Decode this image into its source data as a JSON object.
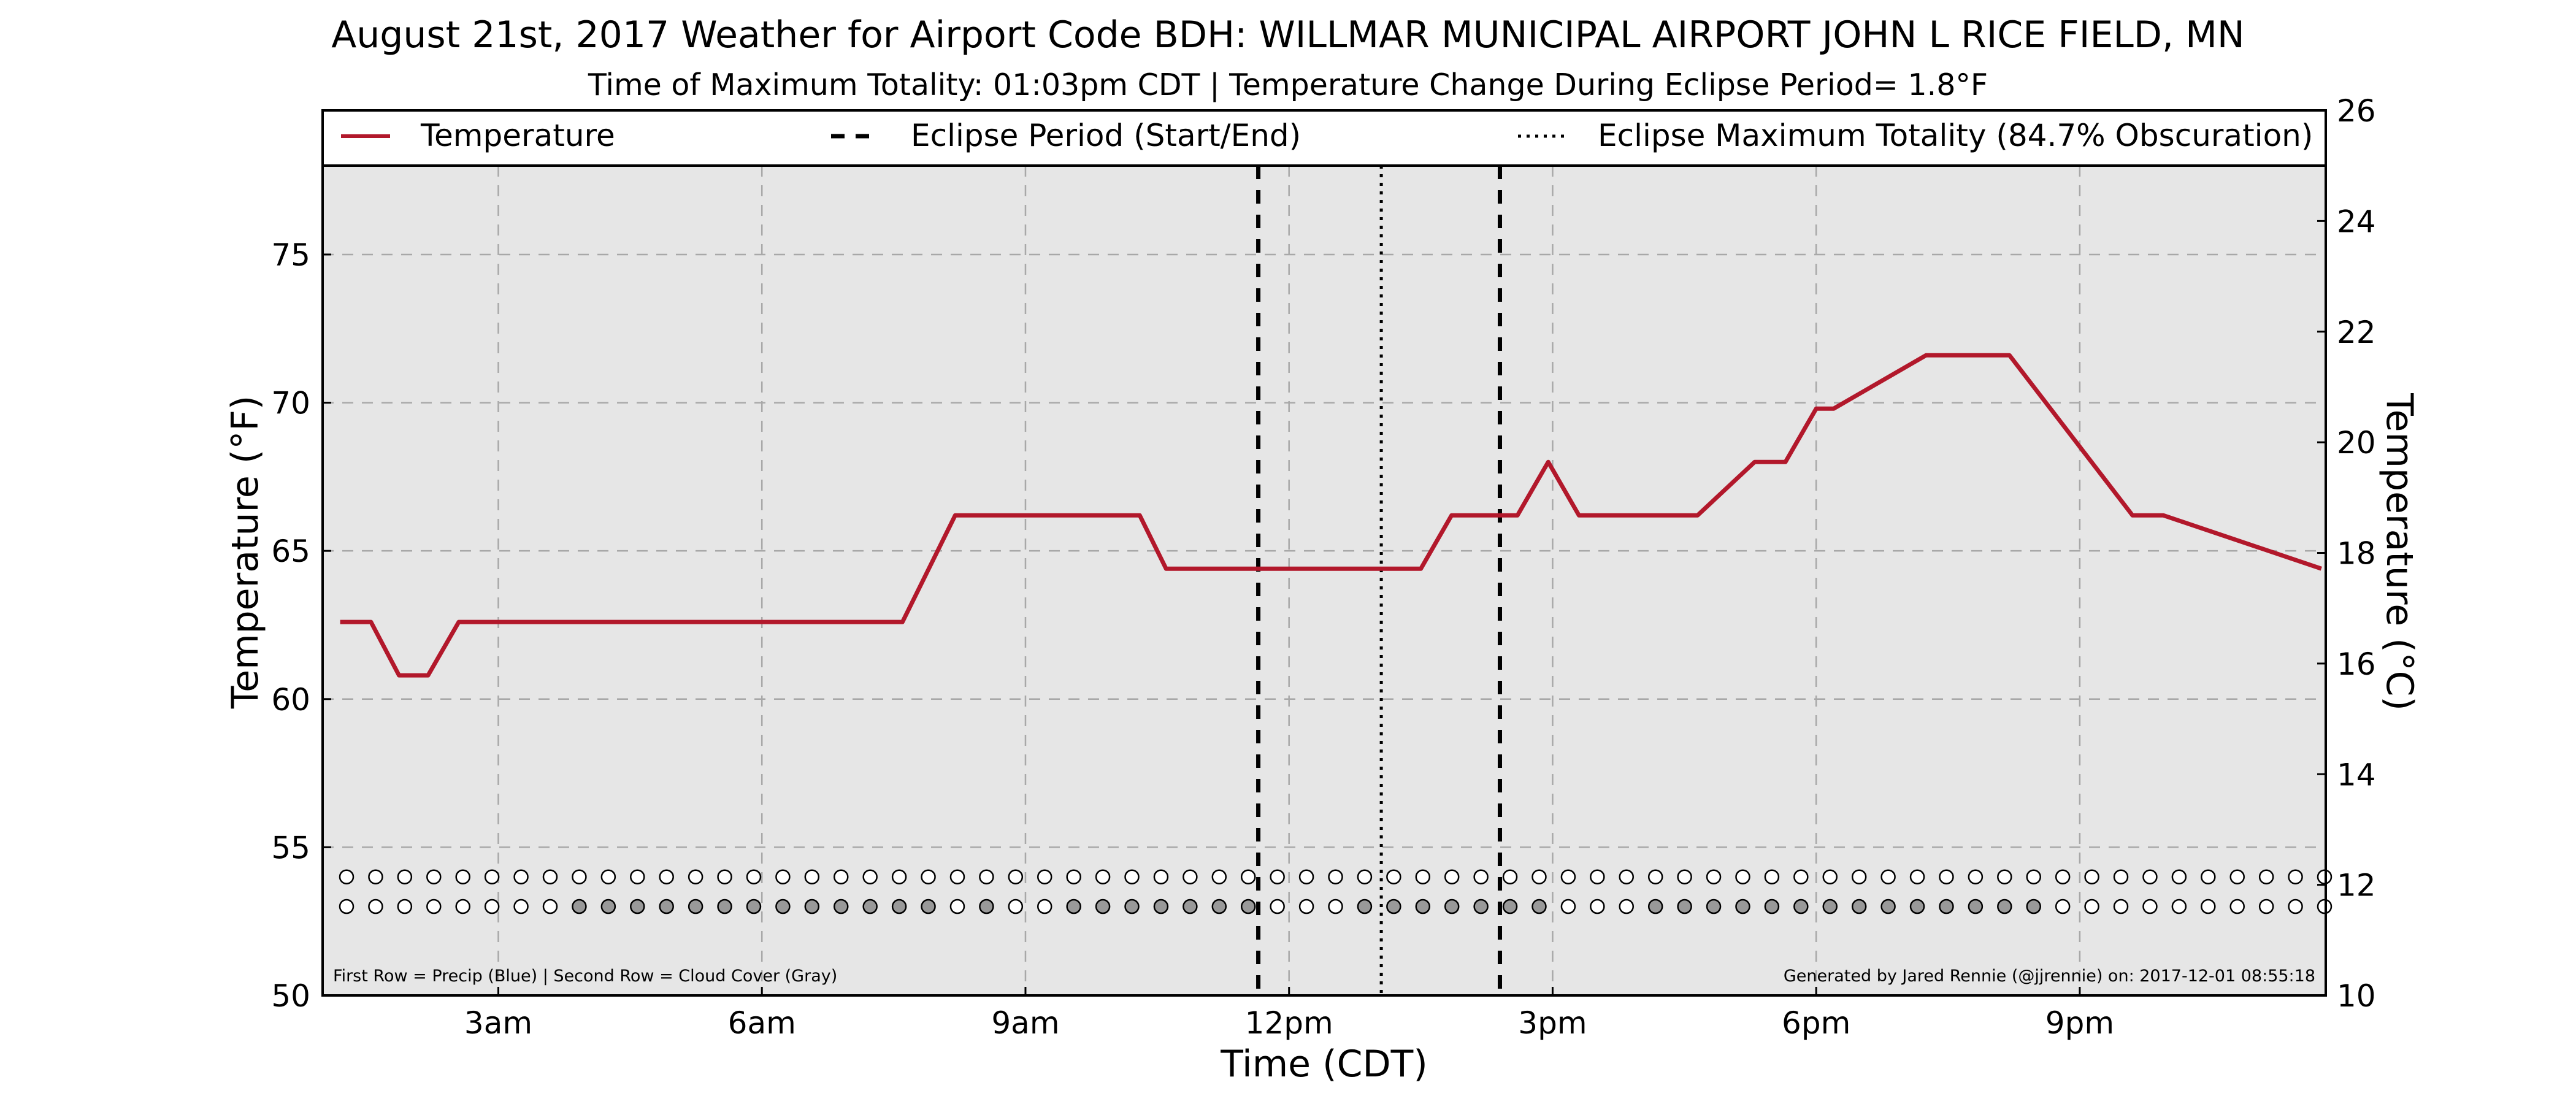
{
  "chart_data": {
    "type": "line",
    "title": "August 21st, 2017 Weather for Airport Code BDH: WILLMAR MUNICIPAL AIRPORT JOHN L RICE FIELD, MN",
    "subtitle": "Time of Maximum Totality: 01:03pm CDT | Temperature Change During Eclipse Period= 1.8$^\\circ$F",
    "subtitle_display": "Time of Maximum Totality: 01:03pm CDT | Temperature Change During Eclipse Period= 1.8°F",
    "xlabel": "Time (CDT)",
    "ylabel": "Temperature ($^\\circ$F)",
    "ylabel_display": "Temperature (°F)",
    "y2label_display": "Temperature (°C)",
    "x_unit": "hours after midnight CDT",
    "xlim": [
      1.0,
      23.8
    ],
    "ylim": [
      50,
      78
    ],
    "y2lim": [
      10,
      26
    ],
    "xticks": [
      {
        "value": 3,
        "label": "3am"
      },
      {
        "value": 6,
        "label": "6am"
      },
      {
        "value": 9,
        "label": "9am"
      },
      {
        "value": 12,
        "label": "12pm"
      },
      {
        "value": 15,
        "label": "3pm"
      },
      {
        "value": 18,
        "label": "6pm"
      },
      {
        "value": 21,
        "label": "9pm"
      }
    ],
    "yticks": [
      50,
      55,
      60,
      65,
      70,
      75
    ],
    "y2ticks": [
      10,
      12,
      14,
      16,
      18,
      20,
      22,
      24,
      26
    ],
    "grid": true,
    "legend": {
      "placement": "top",
      "entries": [
        {
          "label": "Temperature",
          "style": "solid"
        },
        {
          "label": "Eclipse Period (Start/End)",
          "style": "dashed"
        },
        {
          "label": "Eclipse Maximum Totality (84.7% Obscuration)",
          "style": "dotted"
        }
      ]
    },
    "series": [
      {
        "name": "Temperature",
        "color": "#b2182b",
        "x": [
          1.2,
          1.55,
          1.87,
          2.2,
          2.55,
          7.6,
          8.2,
          10.3,
          10.6,
          13.5,
          13.85,
          14.6,
          14.95,
          15.3,
          16.3,
          16.65,
          17.3,
          17.65,
          18.0,
          18.2,
          19.25,
          20.2,
          21.6,
          21.95,
          23.75
        ],
        "y": [
          62.6,
          62.6,
          60.8,
          60.8,
          62.6,
          62.6,
          66.2,
          66.2,
          64.4,
          64.4,
          66.2,
          66.2,
          68.0,
          66.2,
          66.2,
          66.2,
          68.0,
          68.0,
          69.8,
          69.8,
          71.6,
          71.6,
          66.2,
          66.2,
          64.4
        ]
      }
    ],
    "eclipse_start": 11.65,
    "eclipse_max": 13.05,
    "eclipse_end": 14.4,
    "observation_rows": {
      "row_y": [
        54.0,
        53.0
      ],
      "count": 69,
      "precip_row_filled": [],
      "cloud_row_filled": [
        8,
        9,
        10,
        11,
        12,
        13,
        14,
        15,
        16,
        17,
        18,
        19,
        20,
        22,
        25,
        26,
        27,
        28,
        29,
        30,
        31,
        35,
        36,
        37,
        38,
        39,
        40,
        41,
        45,
        46,
        47,
        48,
        49,
        50,
        51,
        52,
        53,
        54,
        55,
        56,
        57,
        58
      ]
    },
    "footnote_left": "First Row = Precip (Blue) | Second Row = Cloud Cover (Gray)",
    "footnote_right": "Generated by Jared Rennie (@jjrennie) on: 2017-12-01 08:55:18"
  },
  "colors": {
    "plot_background": "#e6e6e6",
    "temperature_line": "#b2182b",
    "grid": "#a8a8a8",
    "cloud_fill": "#999999"
  }
}
